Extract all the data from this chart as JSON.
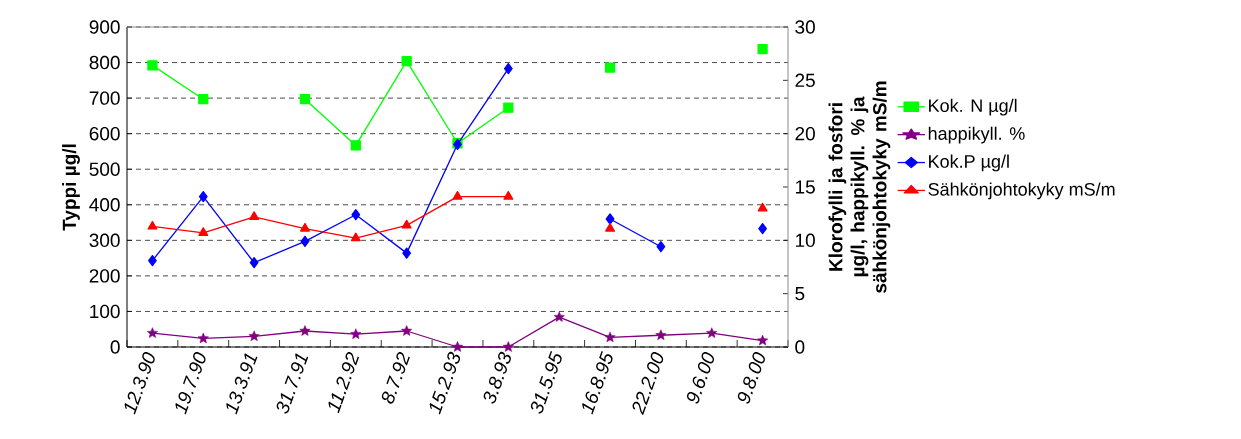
{
  "chart_data": {
    "type": "line",
    "ylabel": "Typpi µg/l",
    "y2label": "Klorofylli ja fosfori µg/l, happikyll. % ja sähkönjohtokyky mS/m",
    "categories": [
      "12.3.90",
      "19.7.90",
      "13.3.91",
      "31.7.91",
      "11.2.92",
      "8.7.92",
      "15.2.93",
      "3.8.93",
      "31.5.95",
      "16.8.95",
      "22.2.00",
      "9.6.00",
      "9.8.00"
    ],
    "ylim": [
      0,
      900
    ],
    "yticks": [
      0,
      100,
      200,
      300,
      400,
      500,
      600,
      700,
      800,
      900
    ],
    "y2lim": [
      0,
      30
    ],
    "y2ticks": [
      0,
      5,
      10,
      15,
      20,
      25,
      30
    ],
    "grid": "y",
    "legend": "right",
    "series": [
      {
        "name": "Kok. N µg/l",
        "color": "#00ff00",
        "marker": "square",
        "values": [
          792,
          697,
          null,
          697,
          567,
          804,
          573,
          673,
          null,
          786,
          null,
          null,
          838
        ]
      },
      {
        "name": "happikyll. %",
        "color": "#800080",
        "marker": "star",
        "axis": "y2",
        "values": [
          1.3,
          0.8,
          1.0,
          1.5,
          1.2,
          1.5,
          0,
          0,
          2.8,
          0.9,
          1.1,
          1.3,
          0.6
        ]
      },
      {
        "name": "Kok.P µg/l",
        "color": "#0000ff",
        "marker": "diamond",
        "axis": "y2",
        "values": [
          8.1,
          14.1,
          7.9,
          9.9,
          12.4,
          8.8,
          19.0,
          26.1,
          null,
          12.0,
          9.4,
          null,
          11.1
        ]
      },
      {
        "name": "Sähkönjohtokyky mS/m",
        "color": "#ff0000",
        "marker": "triangle",
        "axis": "y2",
        "values": [
          11.3,
          10.7,
          12.2,
          11.1,
          10.2,
          11.4,
          14.1,
          14.1,
          null,
          11.1,
          null,
          null,
          13.0
        ]
      }
    ]
  }
}
